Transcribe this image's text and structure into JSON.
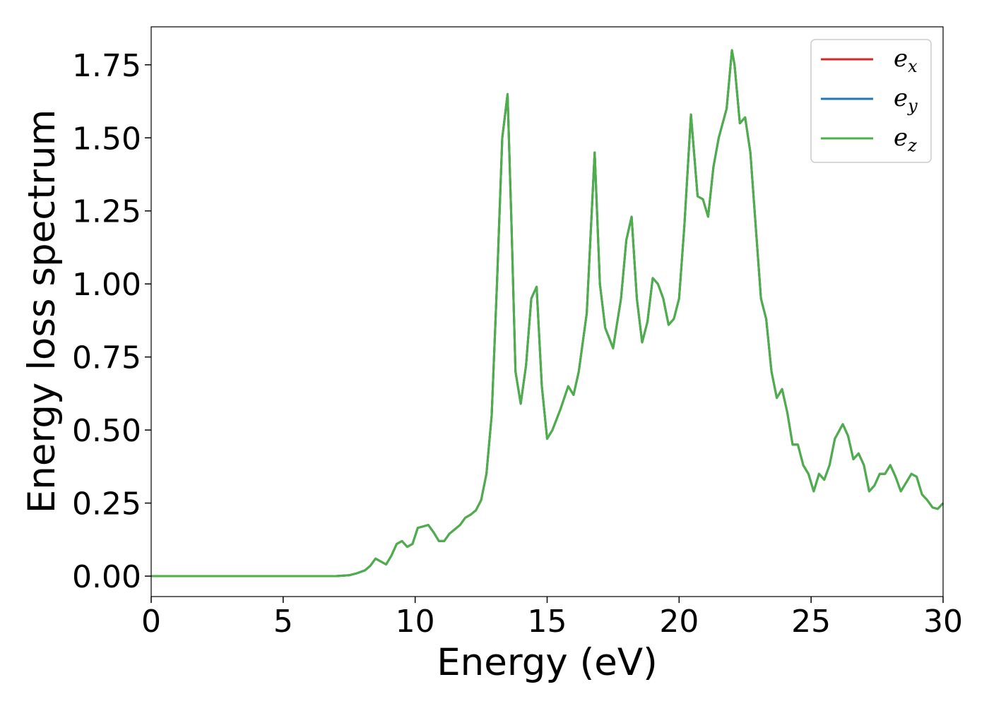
{
  "chart_data": {
    "type": "line",
    "title": "",
    "xlabel": "Energy (eV)",
    "ylabel": "Energy loss spectrum",
    "xlim": [
      0,
      30
    ],
    "ylim": [
      -0.07,
      1.88
    ],
    "xticks": [
      0,
      5,
      10,
      15,
      20,
      25,
      30
    ],
    "xtick_labels": [
      "0",
      "5",
      "10",
      "15",
      "20",
      "25",
      "30"
    ],
    "yticks": [
      0.0,
      0.25,
      0.5,
      0.75,
      1.0,
      1.25,
      1.5,
      1.75
    ],
    "ytick_labels": [
      "0.00",
      "0.25",
      "0.50",
      "0.75",
      "1.00",
      "1.25",
      "1.50",
      "1.75"
    ],
    "grid": false,
    "legend_position": "top-right",
    "x": [
      0,
      2,
      4,
      6,
      7,
      7.5,
      7.8,
      8.1,
      8.3,
      8.5,
      8.7,
      8.9,
      9.1,
      9.3,
      9.5,
      9.7,
      9.9,
      10.1,
      10.3,
      10.5,
      10.7,
      10.9,
      11.1,
      11.3,
      11.5,
      11.7,
      11.9,
      12.1,
      12.3,
      12.5,
      12.7,
      12.9,
      13.1,
      13.3,
      13.5,
      13.65,
      13.8,
      14.0,
      14.2,
      14.4,
      14.6,
      14.8,
      15.0,
      15.2,
      15.5,
      15.8,
      16.0,
      16.2,
      16.5,
      16.8,
      17.0,
      17.2,
      17.5,
      17.8,
      18.0,
      18.2,
      18.4,
      18.6,
      18.8,
      19.0,
      19.2,
      19.4,
      19.6,
      19.8,
      20.0,
      20.2,
      20.45,
      20.7,
      20.9,
      21.1,
      21.3,
      21.5,
      21.8,
      22.0,
      22.1,
      22.3,
      22.5,
      22.7,
      22.9,
      23.1,
      23.3,
      23.5,
      23.7,
      23.9,
      24.1,
      24.3,
      24.5,
      24.7,
      24.9,
      25.1,
      25.3,
      25.5,
      25.7,
      25.9,
      26.2,
      26.4,
      26.6,
      26.8,
      27.0,
      27.2,
      27.4,
      27.6,
      27.8,
      28.0,
      28.2,
      28.4,
      28.6,
      28.8,
      29.0,
      29.2,
      29.4,
      29.6,
      29.8,
      30.0
    ],
    "series": [
      {
        "name": "e_x",
        "color": "#d62728",
        "values": [
          0.0,
          0.0,
          0.0,
          0.0,
          0.0,
          0.003,
          0.01,
          0.02,
          0.035,
          0.06,
          0.05,
          0.04,
          0.07,
          0.11,
          0.12,
          0.1,
          0.11,
          0.165,
          0.17,
          0.175,
          0.15,
          0.12,
          0.12,
          0.145,
          0.16,
          0.175,
          0.2,
          0.21,
          0.225,
          0.26,
          0.35,
          0.55,
          1.0,
          1.5,
          1.65,
          1.2,
          0.7,
          0.59,
          0.72,
          0.95,
          0.99,
          0.65,
          0.47,
          0.5,
          0.57,
          0.65,
          0.62,
          0.7,
          0.9,
          1.45,
          1.0,
          0.85,
          0.78,
          0.95,
          1.15,
          1.23,
          0.95,
          0.8,
          0.87,
          1.02,
          1.0,
          0.95,
          0.86,
          0.88,
          0.95,
          1.2,
          1.58,
          1.3,
          1.29,
          1.23,
          1.4,
          1.5,
          1.6,
          1.8,
          1.75,
          1.55,
          1.57,
          1.45,
          1.2,
          0.95,
          0.88,
          0.7,
          0.61,
          0.64,
          0.56,
          0.45,
          0.45,
          0.38,
          0.35,
          0.29,
          0.35,
          0.33,
          0.38,
          0.47,
          0.52,
          0.48,
          0.4,
          0.42,
          0.38,
          0.29,
          0.31,
          0.35,
          0.35,
          0.38,
          0.34,
          0.29,
          0.32,
          0.35,
          0.34,
          0.28,
          0.26,
          0.235,
          0.23,
          0.25
        ]
      },
      {
        "name": "e_y",
        "color": "#1f77b4",
        "values": [
          0.0,
          0.0,
          0.0,
          0.0,
          0.0,
          0.003,
          0.01,
          0.02,
          0.035,
          0.06,
          0.05,
          0.04,
          0.07,
          0.11,
          0.12,
          0.1,
          0.11,
          0.165,
          0.17,
          0.175,
          0.15,
          0.12,
          0.12,
          0.145,
          0.16,
          0.175,
          0.2,
          0.21,
          0.225,
          0.26,
          0.35,
          0.55,
          1.0,
          1.5,
          1.65,
          1.2,
          0.7,
          0.59,
          0.72,
          0.95,
          0.99,
          0.65,
          0.47,
          0.5,
          0.57,
          0.65,
          0.62,
          0.7,
          0.9,
          1.45,
          1.0,
          0.85,
          0.78,
          0.95,
          1.15,
          1.23,
          0.95,
          0.8,
          0.87,
          1.02,
          1.0,
          0.95,
          0.86,
          0.88,
          0.95,
          1.2,
          1.58,
          1.3,
          1.29,
          1.23,
          1.4,
          1.5,
          1.6,
          1.8,
          1.75,
          1.55,
          1.57,
          1.45,
          1.2,
          0.95,
          0.88,
          0.7,
          0.61,
          0.64,
          0.56,
          0.45,
          0.45,
          0.38,
          0.35,
          0.29,
          0.35,
          0.33,
          0.38,
          0.47,
          0.52,
          0.48,
          0.4,
          0.42,
          0.38,
          0.29,
          0.31,
          0.35,
          0.35,
          0.38,
          0.34,
          0.29,
          0.32,
          0.35,
          0.34,
          0.28,
          0.26,
          0.235,
          0.23,
          0.25
        ]
      },
      {
        "name": "e_z",
        "color": "#4daf4a",
        "values": [
          0.0,
          0.0,
          0.0,
          0.0,
          0.0,
          0.003,
          0.01,
          0.02,
          0.035,
          0.06,
          0.05,
          0.04,
          0.07,
          0.11,
          0.12,
          0.1,
          0.11,
          0.165,
          0.17,
          0.175,
          0.15,
          0.12,
          0.12,
          0.145,
          0.16,
          0.175,
          0.2,
          0.21,
          0.225,
          0.26,
          0.35,
          0.55,
          1.0,
          1.5,
          1.65,
          1.2,
          0.7,
          0.59,
          0.72,
          0.95,
          0.99,
          0.65,
          0.47,
          0.5,
          0.57,
          0.65,
          0.62,
          0.7,
          0.9,
          1.45,
          1.0,
          0.85,
          0.78,
          0.95,
          1.15,
          1.23,
          0.95,
          0.8,
          0.87,
          1.02,
          1.0,
          0.95,
          0.86,
          0.88,
          0.95,
          1.2,
          1.58,
          1.3,
          1.29,
          1.23,
          1.4,
          1.5,
          1.6,
          1.8,
          1.75,
          1.55,
          1.57,
          1.45,
          1.2,
          0.95,
          0.88,
          0.7,
          0.61,
          0.64,
          0.56,
          0.45,
          0.45,
          0.38,
          0.35,
          0.29,
          0.35,
          0.33,
          0.38,
          0.47,
          0.52,
          0.48,
          0.4,
          0.42,
          0.38,
          0.29,
          0.31,
          0.35,
          0.35,
          0.38,
          0.34,
          0.29,
          0.32,
          0.35,
          0.34,
          0.28,
          0.26,
          0.235,
          0.23,
          0.25
        ]
      }
    ],
    "legend": [
      {
        "base": "e",
        "sub": "x",
        "color": "#d62728"
      },
      {
        "base": "e",
        "sub": "y",
        "color": "#1f77b4"
      },
      {
        "base": "e",
        "sub": "z",
        "color": "#4daf4a"
      }
    ]
  }
}
